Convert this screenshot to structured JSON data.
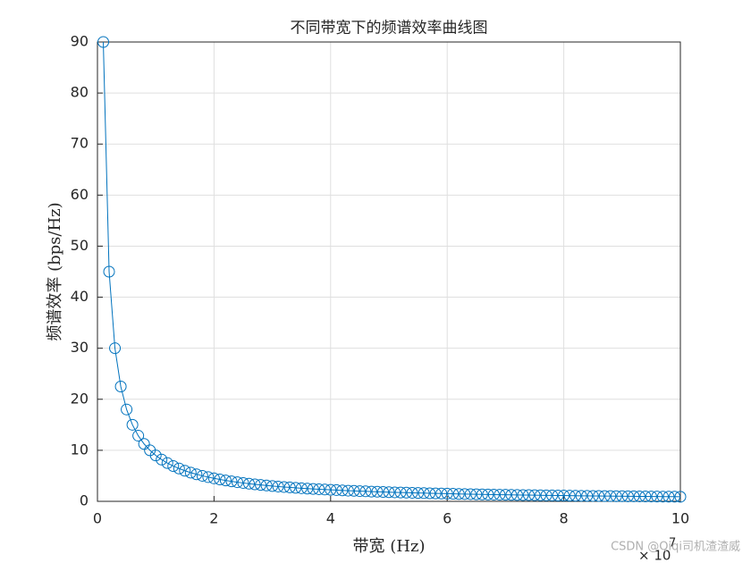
{
  "chart_data": {
    "type": "line",
    "title": "不同带宽下的频谱效率曲线图",
    "x_label": "带宽 (Hz)",
    "y_label": "频谱效率 (bps/Hz)",
    "x_exponent_base": "× 10",
    "x_exponent": "7",
    "watermark": "CSDN @Qiqi司机渣渣威",
    "color": "#0072bd",
    "marker": "circle",
    "grid": true,
    "x": [
      0.1,
      0.2,
      0.3,
      0.4,
      0.5,
      0.6,
      0.7,
      0.8,
      0.9,
      1.0,
      1.1,
      1.2,
      1.3,
      1.4,
      1.5,
      1.6,
      1.7,
      1.8,
      1.9,
      2.0,
      2.1,
      2.2,
      2.3,
      2.4,
      2.5,
      2.6,
      2.7,
      2.8,
      2.9,
      3.0,
      3.1,
      3.2,
      3.3,
      3.4,
      3.5,
      3.6,
      3.7,
      3.8,
      3.9,
      4.0,
      4.1,
      4.2,
      4.3,
      4.4,
      4.5,
      4.6,
      4.7,
      4.8,
      4.9,
      5.0,
      5.1,
      5.2,
      5.3,
      5.4,
      5.5,
      5.6,
      5.7,
      5.8,
      5.9,
      6.0,
      6.1,
      6.2,
      6.3,
      6.4,
      6.5,
      6.6,
      6.7,
      6.8,
      6.9,
      7.0,
      7.1,
      7.2,
      7.3,
      7.4,
      7.5,
      7.6,
      7.7,
      7.8,
      7.9,
      8.0,
      8.1,
      8.2,
      8.3,
      8.4,
      8.5,
      8.6,
      8.7,
      8.8,
      8.9,
      9.0,
      9.1,
      9.2,
      9.3,
      9.4,
      9.5,
      9.6,
      9.7,
      9.8,
      9.9,
      10.0
    ],
    "values": [
      90,
      45,
      30,
      22.5,
      18,
      15,
      12.86,
      11.25,
      10,
      9,
      8.18,
      7.5,
      6.92,
      6.43,
      6,
      5.63,
      5.29,
      5,
      4.74,
      4.5,
      4.29,
      4.09,
      3.91,
      3.75,
      3.6,
      3.46,
      3.33,
      3.21,
      3.1,
      3,
      2.9,
      2.81,
      2.73,
      2.65,
      2.57,
      2.5,
      2.43,
      2.37,
      2.31,
      2.25,
      2.2,
      2.14,
      2.09,
      2.05,
      2,
      1.96,
      1.91,
      1.88,
      1.84,
      1.8,
      1.76,
      1.73,
      1.7,
      1.67,
      1.64,
      1.61,
      1.58,
      1.55,
      1.53,
      1.5,
      1.48,
      1.45,
      1.43,
      1.41,
      1.38,
      1.36,
      1.34,
      1.32,
      1.3,
      1.29,
      1.27,
      1.25,
      1.23,
      1.22,
      1.2,
      1.18,
      1.17,
      1.15,
      1.14,
      1.13,
      1.11,
      1.1,
      1.08,
      1.07,
      1.06,
      1.05,
      1.03,
      1.02,
      1.01,
      1,
      0.99,
      0.98,
      0.97,
      0.96,
      0.95,
      0.94,
      0.93,
      0.92,
      0.91,
      0.9
    ],
    "xlim": [
      0,
      10
    ],
    "xticks": [
      0,
      2,
      4,
      6,
      8,
      10
    ],
    "ylim": [
      0,
      90
    ],
    "yticks": [
      0,
      10,
      20,
      30,
      40,
      50,
      60,
      70,
      80,
      90
    ]
  }
}
